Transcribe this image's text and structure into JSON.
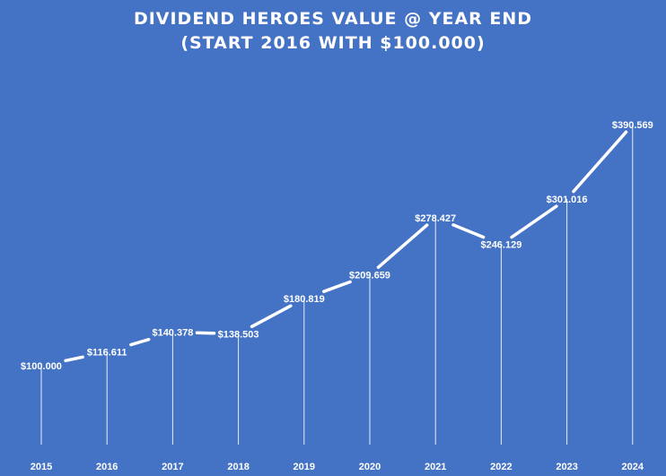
{
  "chart_data": {
    "type": "line",
    "title_lines": [
      "DIVIDEND HEROES VALUE @ YEAR END",
      "(START 2016 WITH $100.000)"
    ],
    "xlabel": "",
    "ylabel": "",
    "categories": [
      "2015",
      "2016",
      "2017",
      "2018",
      "2019",
      "2020",
      "2021",
      "2022",
      "2023",
      "2024"
    ],
    "series": [
      {
        "values": [
          100000,
          116611,
          140378,
          138503,
          180819,
          209659,
          278427,
          246129,
          301016,
          390569
        ]
      }
    ],
    "data_labels": [
      "$100.000",
      "$116.611",
      "$140.378",
      "$138.503",
      "$180.819",
      "$209.659",
      "$278.427",
      "$246.129",
      "$301.016",
      "$390.569"
    ],
    "drop_lines": true,
    "grid": false,
    "legend": "none",
    "colors": {
      "background": "#4472c4",
      "line": "#ffffff",
      "text": "#ffffff",
      "drop_line": "#e8eef8"
    }
  }
}
